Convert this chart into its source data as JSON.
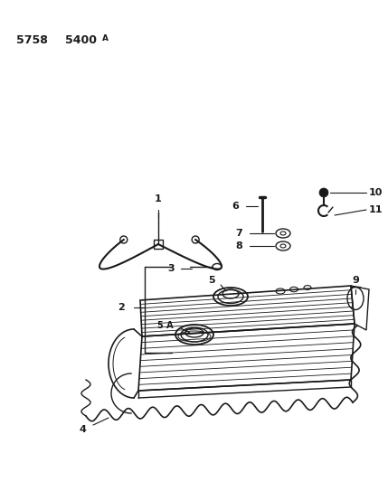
{
  "bg_color": "#ffffff",
  "line_color": "#1a1a1a",
  "fig_width": 4.29,
  "fig_height": 5.33,
  "dpi": 100,
  "title1": "5758",
  "title2": "5400",
  "title3": "A"
}
